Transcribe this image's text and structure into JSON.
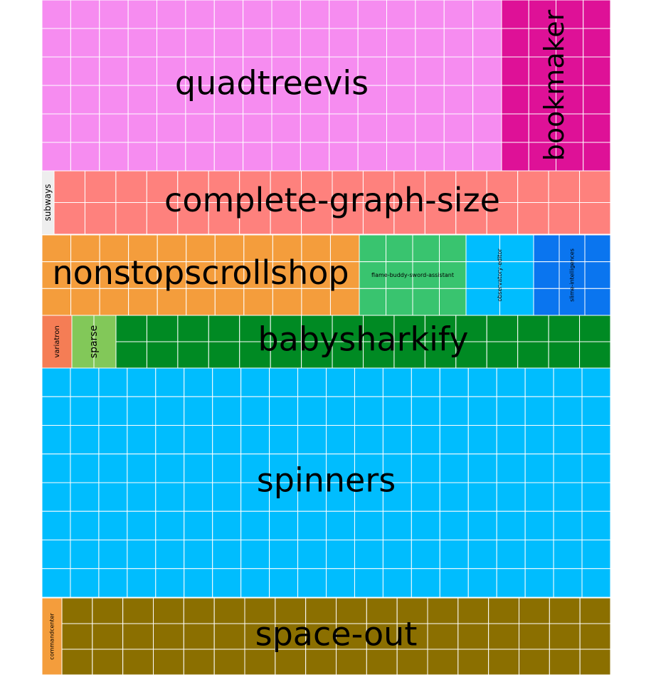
{
  "chart_data": {
    "type": "treemap",
    "title": "",
    "unit_note": "each small square = one item",
    "groups": [
      {
        "name": "quadtreevis",
        "color": "#f68cf0",
        "count": 118
      },
      {
        "name": "bookmaker",
        "color": "#de1197",
        "count": 26
      },
      {
        "name": "subways",
        "color": "#eeeeee",
        "count": 0
      },
      {
        "name": "complete-graph-size",
        "color": "#fe817d",
        "count": 36
      },
      {
        "name": "nonstopscrollshop",
        "color": "#f49d3c",
        "count": 33
      },
      {
        "name": "flame-buddy-sword-assistant",
        "color": "#39c46f",
        "count": 12
      },
      {
        "name": "observatory-editor",
        "color": "#00bdfe",
        "count": 8
      },
      {
        "name": "slime-intelligences",
        "color": "#0a75ef",
        "count": 9
      },
      {
        "name": "variatron",
        "color": "#f57d55",
        "count": 1
      },
      {
        "name": "sparse",
        "color": "#82c859",
        "count": 2
      },
      {
        "name": "babysharkify",
        "color": "#008a23",
        "count": 32
      },
      {
        "name": "spinners",
        "color": "#00bdfe",
        "count": 162
      },
      {
        "name": "commandcenter",
        "color": "#f49d3c",
        "count": 1
      },
      {
        "name": "space-out",
        "color": "#8b6f00",
        "count": 57
      }
    ]
  }
}
